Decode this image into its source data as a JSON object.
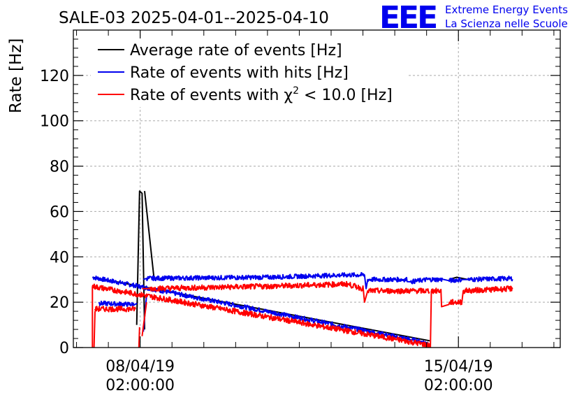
{
  "page": {
    "title": "SALE-03 2025-04-01--2025-04-10",
    "logo_text": "EEE",
    "org_line1": "Extreme Energy Events",
    "org_line2": "La Scienza nelle Scuole"
  },
  "chart_data": {
    "type": "line",
    "title": "SALE-03 2025-04-01--2025-04-10",
    "xlabel": "",
    "ylabel": "Rate [Hz]",
    "x_unit": "days since 08/04/19 02:00:00",
    "xlim": [
      -2.1,
      13.2
    ],
    "ylim": [
      0,
      140
    ],
    "yticks": [
      0,
      20,
      40,
      60,
      80,
      100,
      120
    ],
    "xticks": [
      {
        "value": 0,
        "date": "08/04/19",
        "time": "02:00:00"
      },
      {
        "value": 10,
        "date": "15/04/19",
        "time": "02:00:00"
      }
    ],
    "grid": true,
    "legend_position": "top-left",
    "legend_entries": [
      "Average rate of events [Hz]",
      "Rate of events with hits [Hz]",
      "Rate of events with χ2 < 10.0 [Hz]"
    ],
    "colors": {
      "average": "#000000",
      "hits": "#0000ee",
      "chi2": "#ff0000"
    },
    "series": [
      {
        "key": "average",
        "name": "Average rate of events [Hz]",
        "color": "#000000",
        "segments": [
          {
            "x": [
              -1.5,
              9.1
            ],
            "y": [
              31,
              3
            ]
          },
          {
            "x": [
              -0.11,
              -0.02,
              0.06,
              0.14
            ],
            "y": [
              10,
              69,
              68,
              8
            ]
          },
          {
            "x": [
              0.14,
              0.43
            ],
            "y": [
              69,
              31
            ]
          },
          {
            "x": [
              9.7,
              9.95,
              10.3
            ],
            "y": [
              30,
              31,
              30
            ]
          }
        ]
      },
      {
        "key": "hits",
        "name": "Rate of events with hits [Hz]",
        "color": "#0000ee",
        "noise": 1.0,
        "segments": [
          {
            "x": [
              -1.5,
              9.05
            ],
            "y": [
              31,
              2
            ]
          },
          {
            "x": [
              -1.3,
              -1.28,
              -0.2,
              -0.1
            ],
            "y": [
              20,
              19.5,
              19,
              19.5
            ]
          },
          {
            "x": [
              0.1,
              0.2
            ],
            "y": [
              7,
              23
            ]
          },
          {
            "x": [
              0.1,
              0.2,
              4.0,
              6.5,
              7.05,
              7.1,
              7.15,
              8.4,
              8.5,
              9.0,
              9.5,
              9.7,
              10.1,
              10.3,
              11.7
            ],
            "y": [
              30,
              30.5,
              31,
              32,
              32,
              26,
              30,
              30,
              29,
              30,
              30,
              29.5,
              30,
              30,
              30.5
            ]
          }
        ]
      },
      {
        "key": "chi2",
        "name": "Rate of events with χ2 < 10.0 [Hz]",
        "color": "#ff0000",
        "noise": 1.2,
        "segments": [
          {
            "x": [
              -1.5,
              9.1
            ],
            "y": [
              27,
              1
            ]
          },
          {
            "x": [
              -1.5,
              -1.5
            ],
            "y": [
              27,
              0
            ]
          },
          {
            "x": [
              -1.45,
              -1.42
            ],
            "y": [
              0,
              16
            ]
          },
          {
            "x": [
              -1.42,
              -0.15
            ],
            "y": [
              17,
              17
            ]
          },
          {
            "x": [
              -0.04,
              -0.02
            ],
            "y": [
              0,
              9
            ]
          },
          {
            "x": [
              0.06,
              0.2
            ],
            "y": [
              5,
              20
            ]
          },
          {
            "x": [
              0.06,
              0.3,
              4.0,
              6.5,
              7.0,
              7.05,
              7.15,
              9.1
            ],
            "y": [
              26,
              26,
              27,
              28,
              26,
              20,
              25,
              25
            ]
          },
          {
            "x": [
              9.12,
              9.15
            ],
            "y": [
              0,
              25
            ]
          },
          {
            "x": [
              9.15,
              9.45,
              9.47,
              9.7,
              9.72,
              10.1,
              10.15,
              11.7
            ],
            "y": [
              25,
              25,
              18,
              19,
              20,
              20,
              25,
              26
            ]
          }
        ]
      }
    ]
  }
}
